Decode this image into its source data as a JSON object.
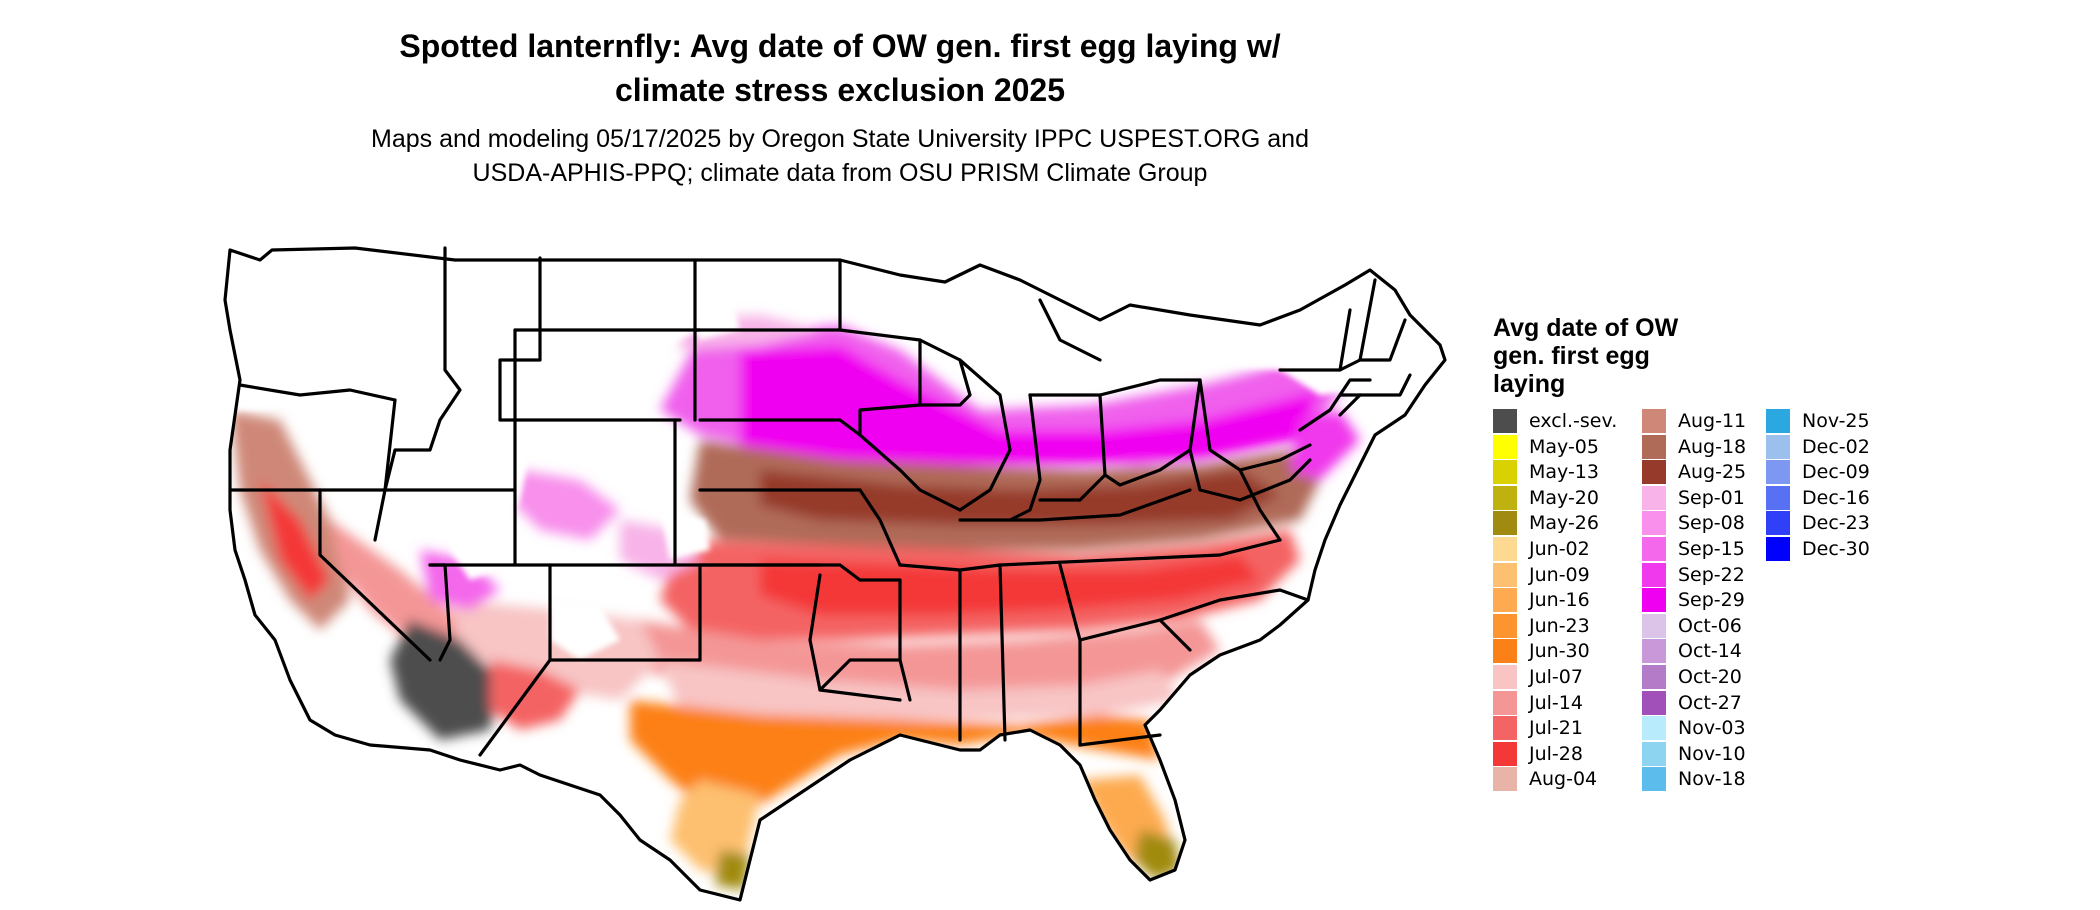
{
  "title_lines": [
    "Spotted lanternfly: Avg date of OW gen. first egg laying w/",
    "climate stress exclusion 2025"
  ],
  "subtitle_lines": [
    "Maps and modeling 05/17/2025 by Oregon State University IPPC USPEST.ORG and",
    "USDA-APHIS-PPQ; climate data from OSU PRISM Climate Group"
  ],
  "legend": {
    "title_lines": [
      "Avg date of OW",
      "gen. first egg",
      "laying"
    ],
    "columns": [
      [
        {
          "label": "excl.-sev.",
          "color": "#4d4d4d"
        },
        {
          "label": "May-05",
          "color": "#ffff00"
        },
        {
          "label": "May-13",
          "color": "#d9d100"
        },
        {
          "label": "May-20",
          "color": "#bfb210"
        },
        {
          "label": "May-26",
          "color": "#a08a10"
        },
        {
          "label": "Jun-02",
          "color": "#fed992"
        },
        {
          "label": "Jun-09",
          "color": "#fdc070"
        },
        {
          "label": "Jun-16",
          "color": "#fdaa50"
        },
        {
          "label": "Jun-23",
          "color": "#fc9530"
        },
        {
          "label": "Jun-30",
          "color": "#fc8018"
        },
        {
          "label": "Jul-07",
          "color": "#f8c4c4"
        },
        {
          "label": "Jul-14",
          "color": "#f49696"
        },
        {
          "label": "Jul-21",
          "color": "#f46464"
        },
        {
          "label": "Jul-28",
          "color": "#f43838"
        },
        {
          "label": "Aug-04",
          "color": "#e8b4a8"
        }
      ],
      [
        {
          "label": "Aug-11",
          "color": "#cf8878"
        },
        {
          "label": "Aug-18",
          "color": "#b06a58"
        },
        {
          "label": "Aug-25",
          "color": "#963a2c"
        },
        {
          "label": "Sep-01",
          "color": "#f8b4e8"
        },
        {
          "label": "Sep-08",
          "color": "#f890ec"
        },
        {
          "label": "Sep-15",
          "color": "#f468ec"
        },
        {
          "label": "Sep-22",
          "color": "#f038ec"
        },
        {
          "label": "Sep-29",
          "color": "#f000f0"
        },
        {
          "label": "Oct-06",
          "color": "#dcc4e8"
        },
        {
          "label": "Oct-14",
          "color": "#c898d8"
        },
        {
          "label": "Oct-20",
          "color": "#b47cc8"
        },
        {
          "label": "Oct-27",
          "color": "#a050b8"
        },
        {
          "label": "Nov-03",
          "color": "#b8ecfc"
        },
        {
          "label": "Nov-10",
          "color": "#8cd4f0"
        },
        {
          "label": "Nov-18",
          "color": "#5cbcec"
        }
      ],
      [
        {
          "label": "Nov-25",
          "color": "#2ca8e0"
        },
        {
          "label": "Dec-02",
          "color": "#9cc0ec"
        },
        {
          "label": "Dec-09",
          "color": "#7c98f0"
        },
        {
          "label": "Dec-16",
          "color": "#5870f4"
        },
        {
          "label": "Dec-23",
          "color": "#3040f8"
        },
        {
          "label": "Dec-30",
          "color": "#0000ff"
        }
      ]
    ]
  }
}
